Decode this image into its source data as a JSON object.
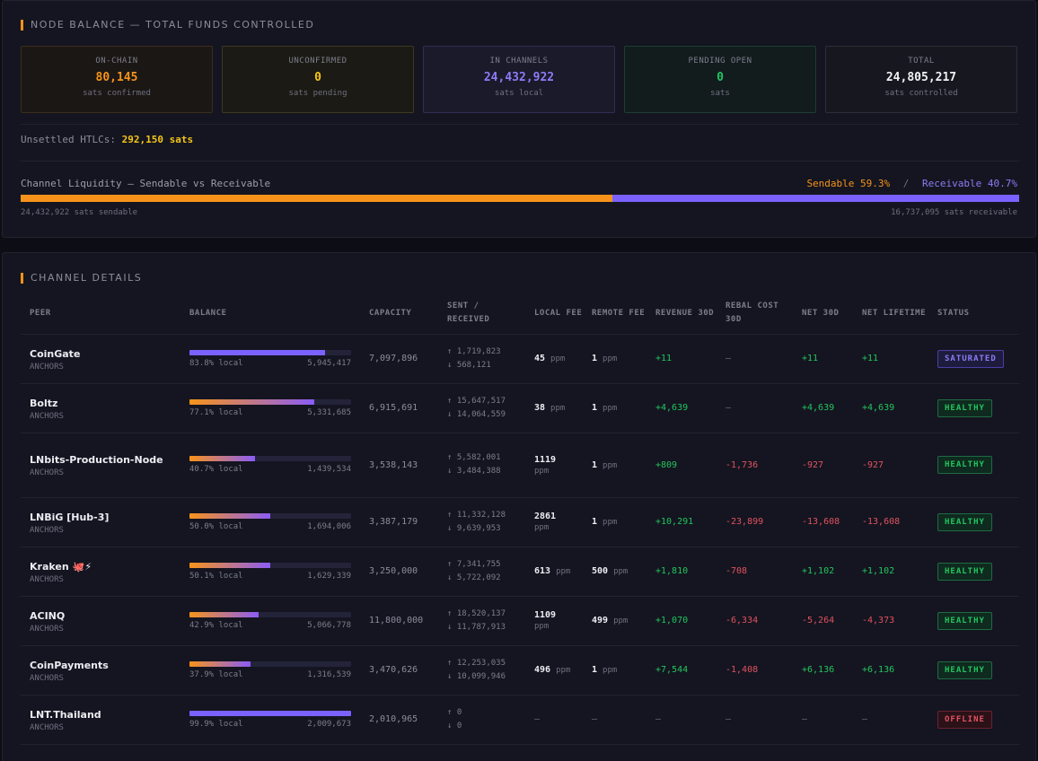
{
  "balance": {
    "title": "NODE BALANCE — TOTAL FUNDS CONTROLLED",
    "cards": [
      {
        "label": "ON-CHAIN",
        "value": "80,145",
        "sub": "sats confirmed"
      },
      {
        "label": "UNCONFIRMED",
        "value": "0",
        "sub": "sats pending"
      },
      {
        "label": "IN CHANNELS",
        "value": "24,432,922",
        "sub": "sats local"
      },
      {
        "label": "PENDING OPEN",
        "value": "0",
        "sub": "sats"
      },
      {
        "label": "TOTAL",
        "value": "24,805,217",
        "sub": "sats controlled"
      }
    ],
    "htlc_label": "Unsettled HTLCs:",
    "htlc_value": "292,150 sats",
    "liquidity": {
      "label": "Channel Liquidity — Sendable vs Receivable",
      "sendable_text": "Sendable 59.3%",
      "separator": "/",
      "receivable_text": "Receivable 40.7%",
      "sendable_fraction": 0.593,
      "sendable_foot": "24,432,922 sats sendable",
      "receivable_foot": "16,737,095 sats receivable"
    }
  },
  "channels": {
    "title": "CHANNEL DETAILS",
    "headers": {
      "peer": "PEER",
      "balance": "BALANCE",
      "capacity": "CAPACITY",
      "sent_received": "SENT / RECEIVED",
      "local_fee": "LOCAL FEE",
      "remote_fee": "REMOTE FEE",
      "revenue": "REVENUE 30D",
      "rebal": "REBAL COST 30D",
      "net30": "NET 30D",
      "lifetime": "NET LIFETIME",
      "status": "STATUS"
    },
    "rows": [
      {
        "peer": "CoinGate",
        "tag": "ANCHORS",
        "local_pct_text": "83.8% local",
        "local_sats": "5,945,417",
        "local_fraction": 0.838,
        "bar_style": "solid",
        "capacity": "7,097,896",
        "sent": "↑ 1,719,823",
        "received": "↓ 568,121",
        "local_fee": "45",
        "local_fee_unit": "ppm",
        "remote_fee": "1",
        "remote_fee_unit": "ppm",
        "revenue": "+11",
        "rebal": "—",
        "net30": "+11",
        "lifetime": "+11",
        "status": "SATURATED"
      },
      {
        "peer": "Boltz",
        "tag": "ANCHORS",
        "local_pct_text": "77.1% local",
        "local_sats": "5,331,685",
        "local_fraction": 0.771,
        "bar_style": "grad",
        "capacity": "6,915,691",
        "sent": "↑ 15,647,517",
        "received": "↓ 14,064,559",
        "local_fee": "38",
        "local_fee_unit": "ppm",
        "remote_fee": "1",
        "remote_fee_unit": "ppm",
        "revenue": "+4,639",
        "rebal": "—",
        "net30": "+4,639",
        "lifetime": "+4,639",
        "status": "HEALTHY"
      },
      {
        "peer": "LNbits-Production-Node",
        "tag": "ANCHORS",
        "local_pct_text": "40.7% local",
        "local_sats": "1,439,534",
        "local_fraction": 0.407,
        "bar_style": "grad",
        "capacity": "3,538,143",
        "sent": "↑ 5,582,001",
        "received": "↓ 3,484,388",
        "local_fee": "1119",
        "local_fee_unit": "ppm",
        "remote_fee": "1",
        "remote_fee_unit": "ppm",
        "revenue": "+809",
        "rebal": "-1,736",
        "net30": "-927",
        "lifetime": "-927",
        "status": "HEALTHY"
      },
      {
        "peer": "LNBiG [Hub-3]",
        "tag": "ANCHORS",
        "local_pct_text": "50.0% local",
        "local_sats": "1,694,006",
        "local_fraction": 0.5,
        "bar_style": "grad",
        "capacity": "3,387,179",
        "sent": "↑ 11,332,128",
        "received": "↓ 9,639,953",
        "local_fee": "2861",
        "local_fee_unit": "ppm",
        "remote_fee": "1",
        "remote_fee_unit": "ppm",
        "revenue": "+10,291",
        "rebal": "-23,899",
        "net30": "-13,608",
        "lifetime": "-13,608",
        "status": "HEALTHY"
      },
      {
        "peer": "Kraken",
        "emoji": "🐙⚡",
        "tag": "ANCHORS",
        "local_pct_text": "50.1% local",
        "local_sats": "1,629,339",
        "local_fraction": 0.501,
        "bar_style": "grad",
        "capacity": "3,250,000",
        "sent": "↑ 7,341,755",
        "received": "↓ 5,722,092",
        "local_fee": "613",
        "local_fee_unit": "ppm",
        "remote_fee": "500",
        "remote_fee_unit": "ppm",
        "revenue": "+1,810",
        "rebal": "-708",
        "net30": "+1,102",
        "lifetime": "+1,102",
        "status": "HEALTHY"
      },
      {
        "peer": "ACINQ",
        "tag": "ANCHORS",
        "local_pct_text": "42.9% local",
        "local_sats": "5,066,778",
        "local_fraction": 0.429,
        "bar_style": "grad",
        "capacity": "11,800,000",
        "sent": "↑ 18,520,137",
        "received": "↓ 11,787,913",
        "local_fee": "1109",
        "local_fee_unit": "ppm",
        "remote_fee": "499",
        "remote_fee_unit": "ppm",
        "revenue": "+1,070",
        "rebal": "-6,334",
        "net30": "-5,264",
        "lifetime": "-4,373",
        "status": "HEALTHY"
      },
      {
        "peer": "CoinPayments",
        "tag": "ANCHORS",
        "local_pct_text": "37.9% local",
        "local_sats": "1,316,539",
        "local_fraction": 0.379,
        "bar_style": "grad",
        "capacity": "3,470,626",
        "sent": "↑ 12,253,035",
        "received": "↓ 10,099,946",
        "local_fee": "496",
        "local_fee_unit": "ppm",
        "remote_fee": "1",
        "remote_fee_unit": "ppm",
        "revenue": "+7,544",
        "rebal": "-1,408",
        "net30": "+6,136",
        "lifetime": "+6,136",
        "status": "HEALTHY"
      },
      {
        "peer": "LNT.Thailand",
        "tag": "ANCHORS",
        "local_pct_text": "99.9% local",
        "local_sats": "2,009,673",
        "local_fraction": 0.999,
        "bar_style": "solid",
        "capacity": "2,010,965",
        "sent": "↑ 0",
        "received": "↓ 0",
        "local_fee": "—",
        "local_fee_unit": "",
        "remote_fee": "—",
        "remote_fee_unit": "",
        "revenue": "—",
        "rebal": "—",
        "net30": "—",
        "lifetime": "—",
        "status": "OFFLINE"
      }
    ]
  },
  "colors": {
    "accent_orange": "#f7931a",
    "accent_purple": "#8b7cf6",
    "positive": "#22c55e",
    "negative": "#e25260",
    "warning": "#f5c518"
  }
}
